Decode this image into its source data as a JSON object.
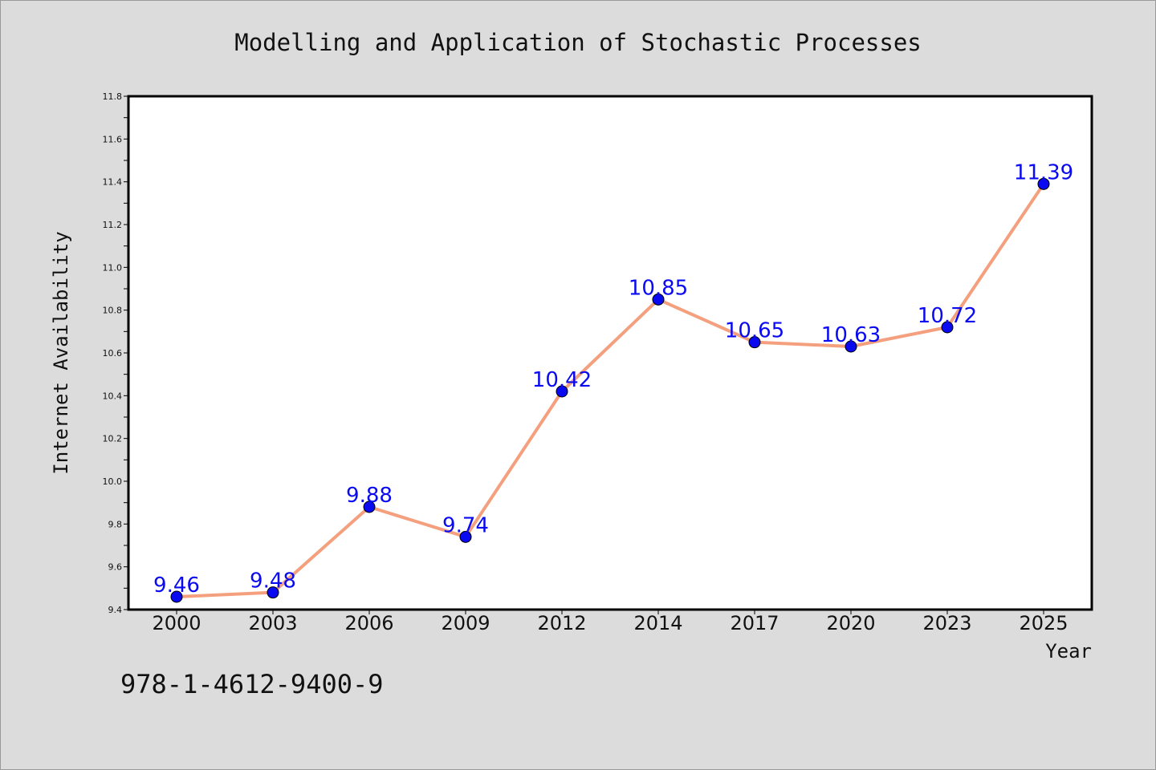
{
  "chart_data": {
    "type": "line",
    "title": "Modelling and Application of Stochastic Processes",
    "xlabel": "Year",
    "ylabel": "Internet Availability",
    "categories": [
      "2000",
      "2003",
      "2006",
      "2009",
      "2012",
      "2014",
      "2017",
      "2020",
      "2023",
      "2025"
    ],
    "series": [
      {
        "values": [
          9.46,
          9.48,
          9.88,
          9.74,
          10.42,
          10.85,
          10.65,
          10.63,
          10.72,
          11.39
        ]
      }
    ],
    "data_labels": [
      "9.46",
      "9.48",
      "9.88",
      "9.74",
      "10.42",
      "10.85",
      "10.65",
      "10.63",
      "10.72",
      "11.39"
    ],
    "ylim": [
      9.4,
      11.8
    ],
    "yticks": [
      "9.4",
      "9.6",
      "9.8",
      "10.0",
      "10.2",
      "10.4",
      "10.6",
      "10.8",
      "11.0",
      "11.2",
      "11.4",
      "11.6",
      "11.8"
    ],
    "grid": false,
    "legend": "none",
    "colors": {
      "line": "#f4a07f",
      "marker": "#0a0af0",
      "label": "#0a0af0",
      "background": "#dcdcdc",
      "plot_background": "#ffffff"
    }
  },
  "footer": {
    "isbn": "978-1-4612-9400-9"
  }
}
